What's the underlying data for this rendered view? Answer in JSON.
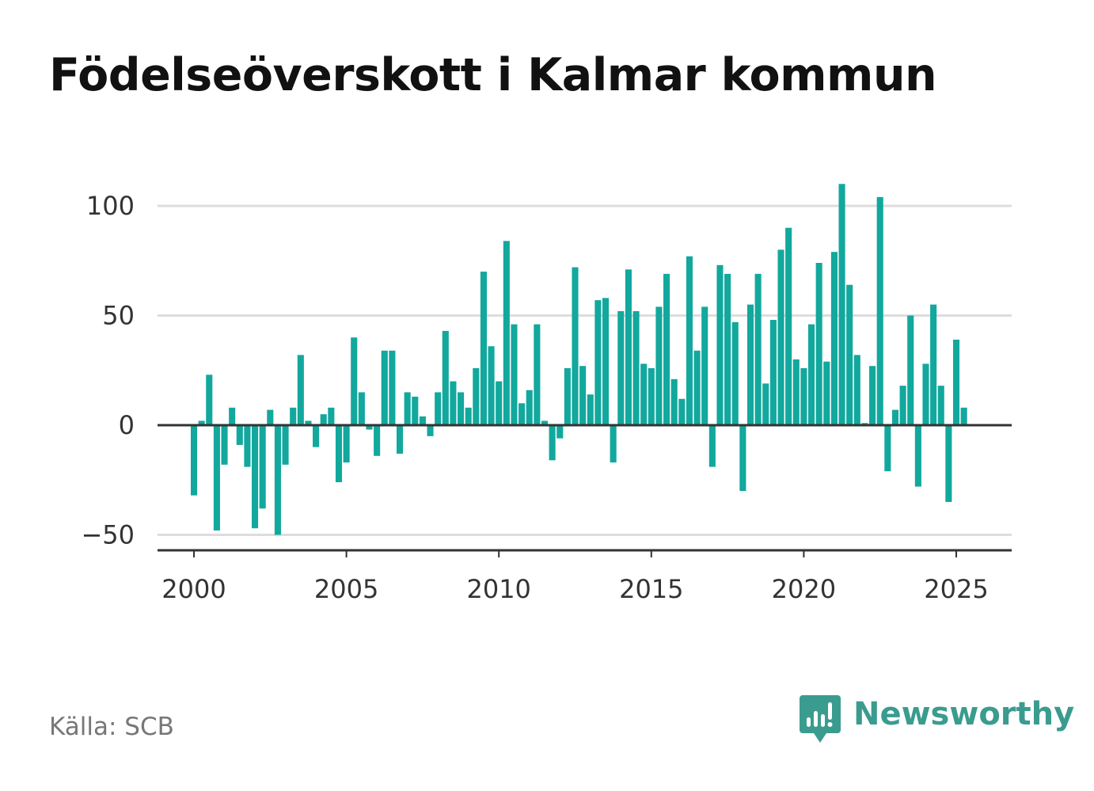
{
  "title": "Födelseöverskott i Kalmar kommun",
  "source": "Källa: SCB",
  "brand": {
    "name": "Newsworthy",
    "icon": "newsworthy-logo-icon",
    "color": "#3a9c8f"
  },
  "colors": {
    "bar": "#12a89d",
    "grid": "#dddddd",
    "axis": "#333333",
    "text": "#333333"
  },
  "chart_data": {
    "type": "bar",
    "title": "Födelseöverskott i Kalmar kommun",
    "xlabel": "",
    "ylabel": "",
    "frequency": "quarterly",
    "x_start": 2000.0,
    "x_step": 0.25,
    "xlim": [
      1998.8,
      2026.8
    ],
    "ylim": [
      -57,
      110
    ],
    "x_ticks": [
      2000,
      2005,
      2010,
      2015,
      2020,
      2025
    ],
    "y_ticks": [
      -50,
      0,
      50,
      100
    ],
    "y_tick_labels": [
      "−50",
      "0",
      "50",
      "100"
    ],
    "grid": true,
    "legend": "none",
    "values": [
      -32,
      2,
      23,
      -48,
      -18,
      8,
      -9,
      -19,
      -47,
      -38,
      7,
      -50,
      -18,
      8,
      32,
      2,
      -10,
      5,
      8,
      -26,
      -17,
      40,
      15,
      -2,
      -14,
      34,
      34,
      -13,
      15,
      13,
      4,
      -5,
      15,
      43,
      20,
      15,
      8,
      26,
      70,
      36,
      20,
      84,
      46,
      10,
      16,
      46,
      2,
      -16,
      -6,
      26,
      72,
      27,
      14,
      57,
      58,
      -17,
      52,
      71,
      52,
      28,
      26,
      54,
      69,
      21,
      12,
      77,
      34,
      54,
      -19,
      73,
      69,
      47,
      -30,
      55,
      69,
      19,
      48,
      80,
      90,
      30,
      26,
      46,
      74,
      29,
      79,
      110,
      64,
      32,
      1,
      27,
      104,
      -21,
      7,
      18,
      50,
      -28,
      28,
      55,
      18,
      -35,
      39,
      8
    ]
  }
}
